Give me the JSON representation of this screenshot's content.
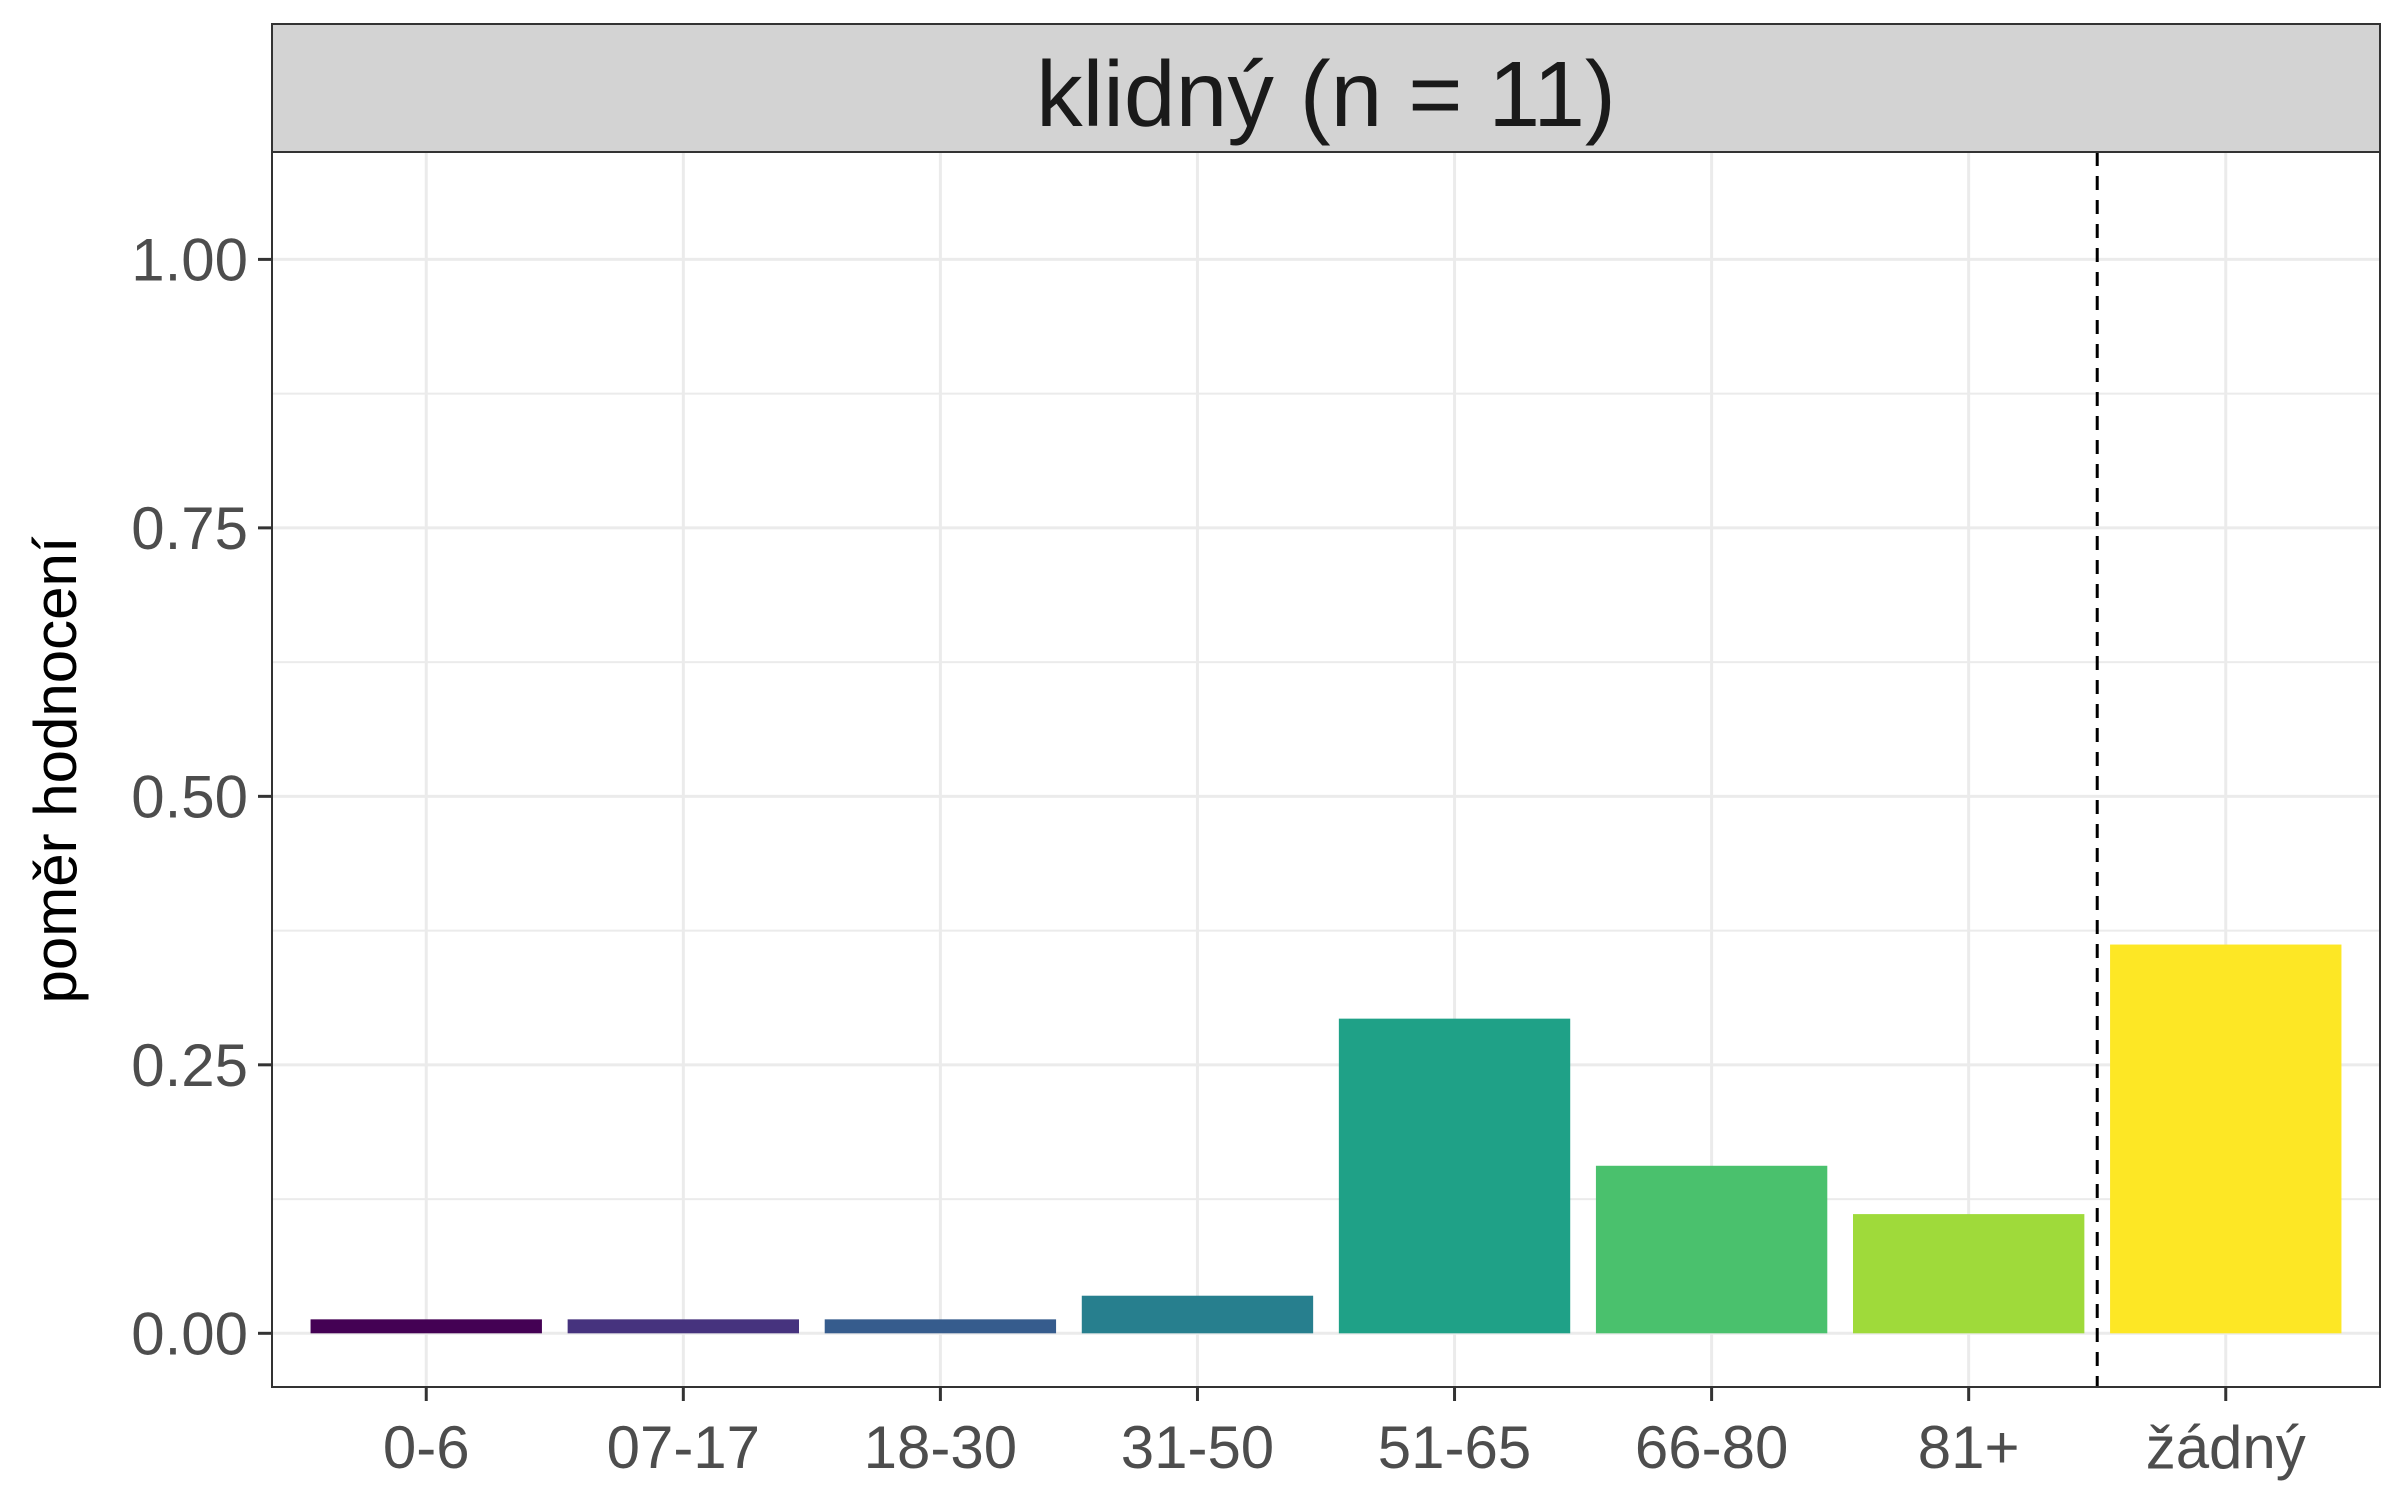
{
  "chart_data": {
    "type": "bar",
    "title": "klidný (n = 11)",
    "ylabel": "poměr hodnocení",
    "xlabel": "",
    "categories": [
      "0-6",
      "07-17",
      "18-30",
      "31-50",
      "51-65",
      "66-80",
      "81+",
      "žádný"
    ],
    "values": [
      0.013,
      0.013,
      0.013,
      0.035,
      0.293,
      0.156,
      0.111,
      0.362
    ],
    "colors": [
      "#440154",
      "#46337E",
      "#365C8D",
      "#277F8E",
      "#1FA187",
      "#4AC16D",
      "#9FDA3A",
      "#FDE725"
    ],
    "ylim": [
      -0.05,
      1.1
    ],
    "y_ticks": [
      {
        "value": 0.0,
        "label": "0.00"
      },
      {
        "value": 0.25,
        "label": "0.25"
      },
      {
        "value": 0.5,
        "label": "0.50"
      },
      {
        "value": 0.75,
        "label": "0.75"
      },
      {
        "value": 1.0,
        "label": "1.00"
      }
    ],
    "y_minor_ticks": [
      0.125,
      0.375,
      0.625,
      0.875,
      1.125
    ],
    "separator_after_category": "81+",
    "grid": true,
    "legend": "none",
    "strip_background": "#D3D3D3"
  }
}
